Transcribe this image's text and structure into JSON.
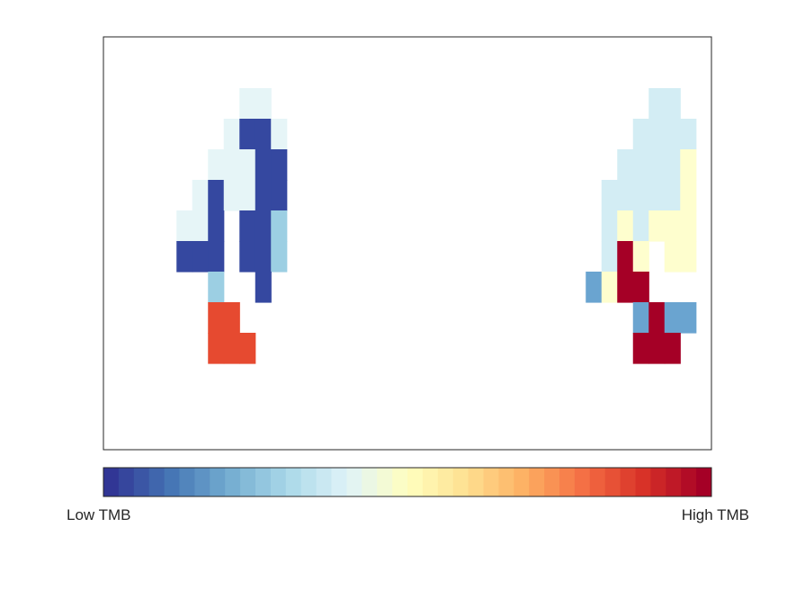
{
  "chart_data": {
    "type": "heatmap",
    "title": "",
    "xlabel": "",
    "ylabel": "",
    "grid": false,
    "colorbar": {
      "orientation": "horizontal",
      "placement": "bottom",
      "low_label": "Low TMB",
      "high_label": "High TMB",
      "levels": 40,
      "colormap": "RdYlBu_r"
    },
    "palette": {
      "dark_blue": "#3548a0",
      "light_cyan": "#e6f5f7",
      "pale_blue": "#d3edf4",
      "sky_blue": "#9ccfe3",
      "mid_blue": "#6aa4d0",
      "light_yellow": "#fefece",
      "orange_red": "#e64a30",
      "dark_red": "#a50026"
    },
    "cells": [
      {
        "col": 9,
        "row": 3,
        "color": "light_cyan"
      },
      {
        "col": 10,
        "row": 3,
        "color": "light_cyan"
      },
      {
        "col": 8,
        "row": 4,
        "color": "light_cyan"
      },
      {
        "col": 9,
        "row": 4,
        "color": "dark_blue"
      },
      {
        "col": 10,
        "row": 4,
        "color": "dark_blue"
      },
      {
        "col": 11,
        "row": 4,
        "color": "light_cyan"
      },
      {
        "col": 7,
        "row": 5,
        "color": "light_cyan"
      },
      {
        "col": 8,
        "row": 5,
        "color": "light_cyan"
      },
      {
        "col": 9,
        "row": 5,
        "color": "light_cyan"
      },
      {
        "col": 10,
        "row": 5,
        "color": "dark_blue"
      },
      {
        "col": 11,
        "row": 5,
        "color": "dark_blue"
      },
      {
        "col": 6,
        "row": 6,
        "color": "light_cyan"
      },
      {
        "col": 7,
        "row": 6,
        "color": "dark_blue"
      },
      {
        "col": 8,
        "row": 6,
        "color": "light_cyan"
      },
      {
        "col": 9,
        "row": 6,
        "color": "light_cyan"
      },
      {
        "col": 10,
        "row": 6,
        "color": "dark_blue"
      },
      {
        "col": 11,
        "row": 6,
        "color": "dark_blue"
      },
      {
        "col": 5,
        "row": 7,
        "color": "light_cyan"
      },
      {
        "col": 6,
        "row": 7,
        "color": "light_cyan"
      },
      {
        "col": 7,
        "row": 7,
        "color": "dark_blue"
      },
      {
        "col": 9,
        "row": 7,
        "color": "dark_blue"
      },
      {
        "col": 10,
        "row": 7,
        "color": "dark_blue"
      },
      {
        "col": 11,
        "row": 7,
        "color": "sky_blue"
      },
      {
        "col": 5,
        "row": 8,
        "color": "dark_blue"
      },
      {
        "col": 6,
        "row": 8,
        "color": "dark_blue"
      },
      {
        "col": 7,
        "row": 8,
        "color": "dark_blue"
      },
      {
        "col": 9,
        "row": 8,
        "color": "dark_blue"
      },
      {
        "col": 10,
        "row": 8,
        "color": "dark_blue"
      },
      {
        "col": 11,
        "row": 8,
        "color": "sky_blue"
      },
      {
        "col": 7,
        "row": 9,
        "color": "sky_blue"
      },
      {
        "col": 10,
        "row": 9,
        "color": "dark_blue"
      },
      {
        "col": 7,
        "row": 10,
        "color": "orange_red"
      },
      {
        "col": 8,
        "row": 10,
        "color": "orange_red"
      },
      {
        "col": 7,
        "row": 11,
        "color": "orange_red"
      },
      {
        "col": 8,
        "row": 11,
        "color": "orange_red"
      },
      {
        "col": 9,
        "row": 11,
        "color": "orange_red"
      },
      {
        "col": 35,
        "row": 3,
        "color": "pale_blue"
      },
      {
        "col": 36,
        "row": 3,
        "color": "pale_blue"
      },
      {
        "col": 34,
        "row": 4,
        "color": "pale_blue"
      },
      {
        "col": 35,
        "row": 4,
        "color": "pale_blue"
      },
      {
        "col": 36,
        "row": 4,
        "color": "pale_blue"
      },
      {
        "col": 37,
        "row": 4,
        "color": "pale_blue"
      },
      {
        "col": 33,
        "row": 5,
        "color": "pale_blue"
      },
      {
        "col": 34,
        "row": 5,
        "color": "pale_blue"
      },
      {
        "col": 35,
        "row": 5,
        "color": "pale_blue"
      },
      {
        "col": 36,
        "row": 5,
        "color": "pale_blue"
      },
      {
        "col": 37,
        "row": 5,
        "color": "light_yellow"
      },
      {
        "col": 32,
        "row": 6,
        "color": "pale_blue"
      },
      {
        "col": 33,
        "row": 6,
        "color": "pale_blue"
      },
      {
        "col": 34,
        "row": 6,
        "color": "pale_blue"
      },
      {
        "col": 35,
        "row": 6,
        "color": "pale_blue"
      },
      {
        "col": 36,
        "row": 6,
        "color": "pale_blue"
      },
      {
        "col": 37,
        "row": 6,
        "color": "light_yellow"
      },
      {
        "col": 32,
        "row": 7,
        "color": "pale_blue"
      },
      {
        "col": 33,
        "row": 7,
        "color": "light_yellow"
      },
      {
        "col": 34,
        "row": 7,
        "color": "pale_blue"
      },
      {
        "col": 35,
        "row": 7,
        "color": "light_yellow"
      },
      {
        "col": 36,
        "row": 7,
        "color": "light_yellow"
      },
      {
        "col": 37,
        "row": 7,
        "color": "light_yellow"
      },
      {
        "col": 32,
        "row": 8,
        "color": "pale_blue"
      },
      {
        "col": 33,
        "row": 8,
        "color": "dark_red"
      },
      {
        "col": 34,
        "row": 8,
        "color": "light_yellow"
      },
      {
        "col": 36,
        "row": 8,
        "color": "light_yellow"
      },
      {
        "col": 37,
        "row": 8,
        "color": "light_yellow"
      },
      {
        "col": 31,
        "row": 9,
        "color": "mid_blue"
      },
      {
        "col": 32,
        "row": 9,
        "color": "light_yellow"
      },
      {
        "col": 33,
        "row": 9,
        "color": "dark_red"
      },
      {
        "col": 34,
        "row": 9,
        "color": "dark_red"
      },
      {
        "col": 34,
        "row": 10,
        "color": "mid_blue"
      },
      {
        "col": 35,
        "row": 10,
        "color": "dark_red"
      },
      {
        "col": 36,
        "row": 10,
        "color": "mid_blue"
      },
      {
        "col": 37,
        "row": 10,
        "color": "mid_blue"
      },
      {
        "col": 34,
        "row": 11,
        "color": "dark_red"
      },
      {
        "col": 35,
        "row": 11,
        "color": "dark_red"
      },
      {
        "col": 36,
        "row": 11,
        "color": "dark_red"
      }
    ]
  }
}
